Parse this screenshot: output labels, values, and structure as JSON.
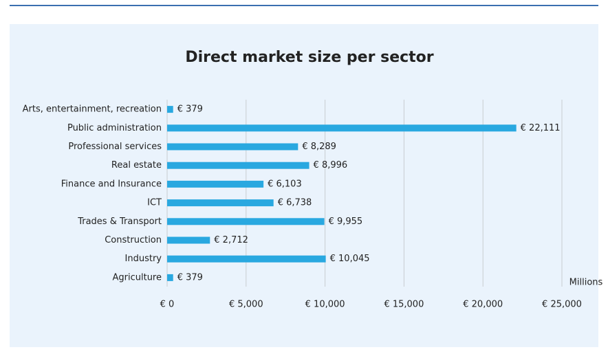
{
  "chart_data": {
    "type": "bar",
    "orientation": "horizontal",
    "title": "Direct market size per sector",
    "x_label": "Millions",
    "categories": [
      "Arts, entertainment, recreation",
      "Public administration",
      "Professional services",
      "Real estate",
      "Finance and Insurance",
      "ICT",
      "Trades & Transport",
      "Construction",
      "Industry",
      "Agriculture"
    ],
    "values": [
      379,
      22111,
      8289,
      8996,
      6103,
      6738,
      9955,
      2712,
      10045,
      379
    ],
    "value_labels": [
      "€ 379",
      "€ 22,111",
      "€ 8,289",
      "€ 8,996",
      "€ 6,103",
      "€ 6,738",
      "€ 9,955",
      "€ 2,712",
      "€ 10,045",
      "€ 379"
    ],
    "color": "#29a8e0",
    "xlim": [
      0,
      25000
    ],
    "xticks": [
      {
        "value": 0,
        "label": "€ 0"
      },
      {
        "value": 5000,
        "label": "€ 5,000"
      },
      {
        "value": 10000,
        "label": "€ 10,000"
      },
      {
        "value": 15000,
        "label": "€ 15,000"
      },
      {
        "value": 20000,
        "label": "€ 20,000"
      },
      {
        "value": 25000,
        "label": "€ 25,000"
      }
    ],
    "grid": true
  }
}
